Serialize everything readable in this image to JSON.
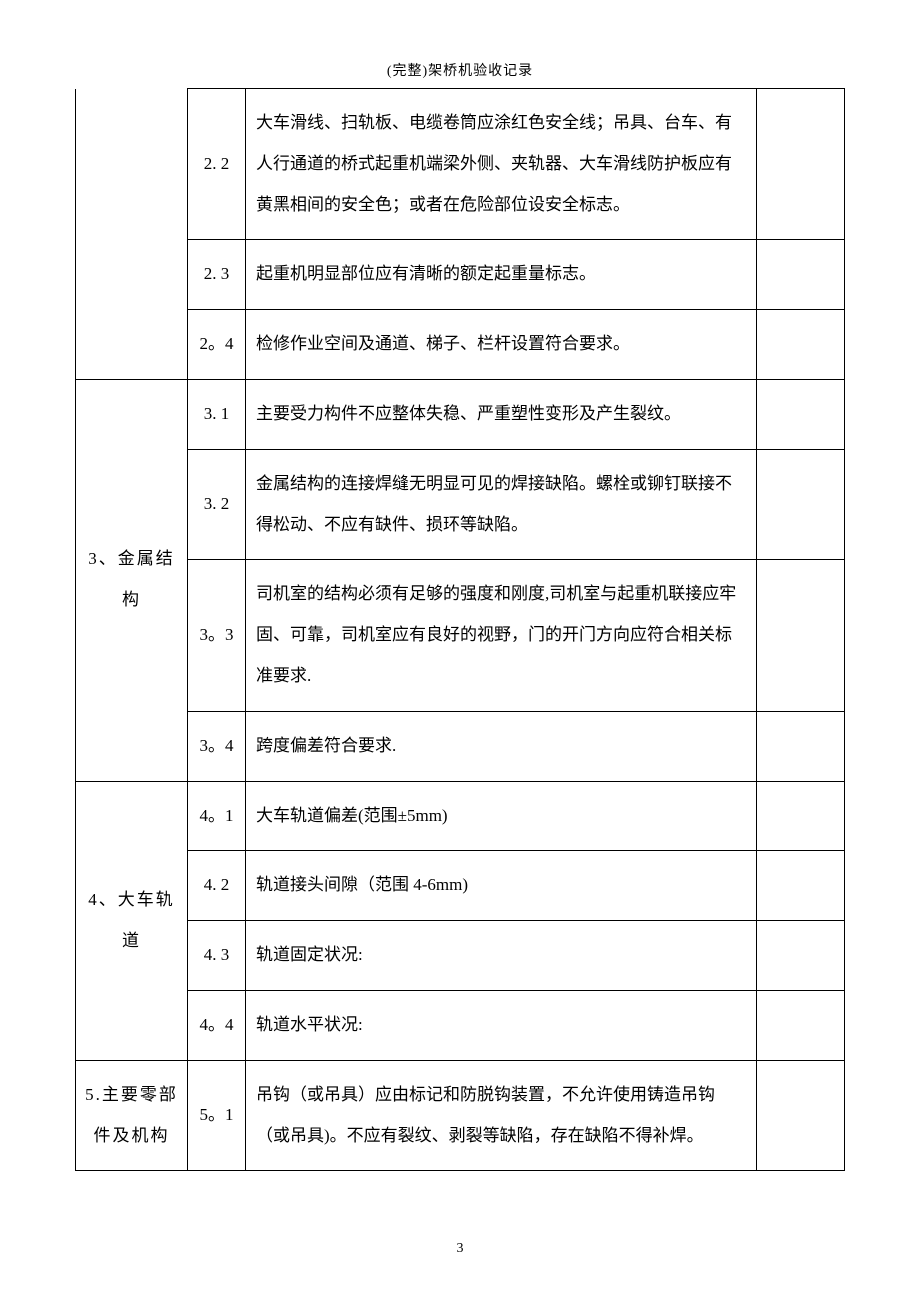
{
  "header": "(完整)架桥机验收记录",
  "pageNumber": "3",
  "rows": [
    {
      "category": "",
      "categoryRowspan": 3,
      "categoryNoTop": true,
      "num": "2. 2",
      "content": "大车滑线、扫轨板、电缆卷筒应涂红色安全线；吊具、台车、有人行通道的桥式起重机端梁外侧、夹轨器、大车滑线防护板应有黄黑相间的安全色；或者在危险部位设安全标志。",
      "remark": ""
    },
    {
      "num": "2. 3",
      "content": "起重机明显部位应有清晰的额定起重量标志。",
      "remark": ""
    },
    {
      "num": "2。4",
      "content": "检修作业空间及通道、梯子、栏杆设置符合要求。",
      "remark": ""
    },
    {
      "category": "3、金属结构",
      "categoryRowspan": 4,
      "num": "3. 1",
      "content": "主要受力构件不应整体失稳、严重塑性变形及产生裂纹。",
      "remark": ""
    },
    {
      "num": "3. 2",
      "content": "金属结构的连接焊缝无明显可见的焊接缺陷。螺栓或铆钉联接不得松动、不应有缺件、损环等缺陷。",
      "remark": ""
    },
    {
      "num": "3。3",
      "content": "司机室的结构必须有足够的强度和刚度,司机室与起重机联接应牢固、可靠，司机室应有良好的视野，门的开门方向应符合相关标准要求.",
      "remark": ""
    },
    {
      "num": "3。4",
      "content": "跨度偏差符合要求.",
      "remark": ""
    },
    {
      "category": "4、大车轨道",
      "categoryRowspan": 4,
      "num": "4。1",
      "content": "大车轨道偏差(范围±5mm)",
      "remark": ""
    },
    {
      "num": "4. 2",
      "content": "轨道接头间隙（范围 4-6mm)",
      "remark": ""
    },
    {
      "num": "4. 3",
      "content": "轨道固定状况:",
      "remark": ""
    },
    {
      "num": "4。4",
      "content": "轨道水平状况:",
      "remark": ""
    },
    {
      "category": "5.主要零部件及机构",
      "categoryRowspan": 1,
      "num": "5。1",
      "content": "吊钩（或吊具）应由标记和防脱钩装置，不允许使用铸造吊钩（或吊具)。不应有裂纹、剥裂等缺陷，存在缺陷不得补焊。",
      "remark": ""
    }
  ]
}
